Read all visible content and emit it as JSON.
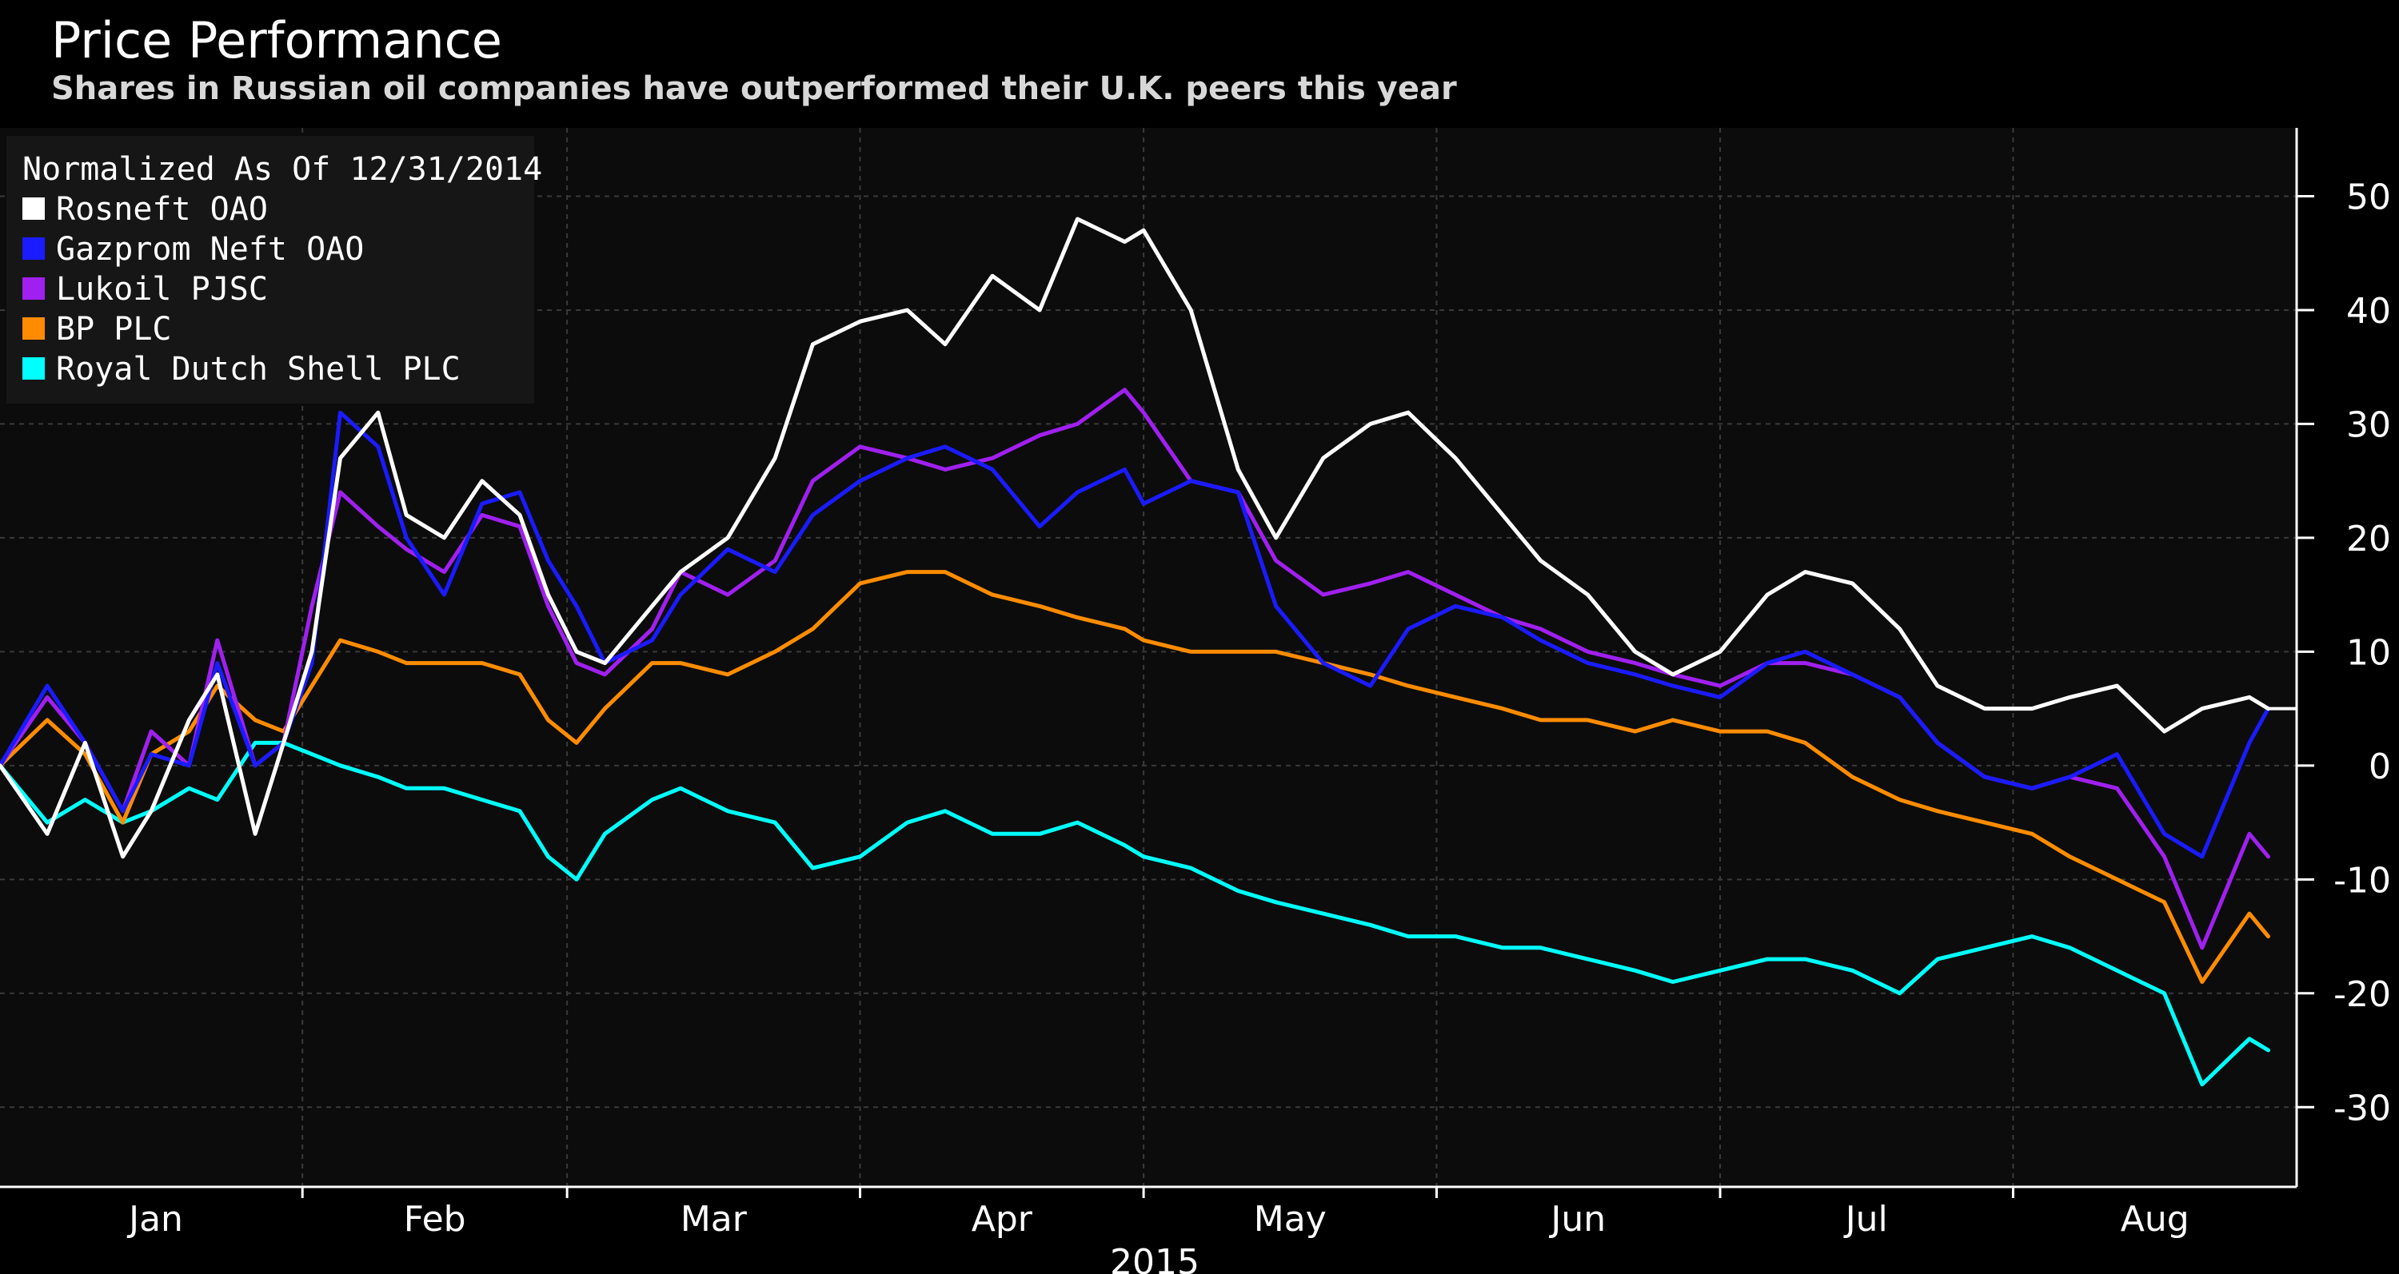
{
  "chart_data": {
    "type": "line",
    "title": "Price Performance",
    "subtitle": "Shares in Russian oil companies have outperformed their U.K. peers this year",
    "legend_title": "Normalized As Of 12/31/2014",
    "legend_position": "top-left",
    "xlabel": "2015",
    "ylabel": "",
    "x_tick_labels": [
      "Jan",
      "Feb",
      "Mar",
      "Apr",
      "May",
      "Jun",
      "Jul",
      "Aug"
    ],
    "y_ticks": [
      50,
      40,
      30,
      20,
      10,
      0,
      -10,
      -20,
      -30
    ],
    "y_tick_labels": [
      "50",
      "40",
      "30",
      "20",
      "10",
      "0",
      "-10",
      "-20",
      "-30"
    ],
    "ylim": [
      -37,
      56
    ],
    "xlim": [
      "2014-12-31",
      "2015-08-31"
    ],
    "grid": true,
    "x": [
      "2014-12-31",
      "2015-01-05",
      "2015-01-09",
      "2015-01-13",
      "2015-01-16",
      "2015-01-20",
      "2015-01-23",
      "2015-01-27",
      "2015-01-30",
      "2015-02-02",
      "2015-02-05",
      "2015-02-09",
      "2015-02-12",
      "2015-02-16",
      "2015-02-20",
      "2015-02-24",
      "2015-02-27",
      "2015-03-02",
      "2015-03-05",
      "2015-03-10",
      "2015-03-13",
      "2015-03-18",
      "2015-03-23",
      "2015-03-27",
      "2015-04-01",
      "2015-04-06",
      "2015-04-10",
      "2015-04-15",
      "2015-04-20",
      "2015-04-24",
      "2015-04-29",
      "2015-05-01",
      "2015-05-06",
      "2015-05-11",
      "2015-05-15",
      "2015-05-20",
      "2015-05-25",
      "2015-05-29",
      "2015-06-03",
      "2015-06-08",
      "2015-06-12",
      "2015-06-17",
      "2015-06-22",
      "2015-06-26",
      "2015-07-01",
      "2015-07-06",
      "2015-07-10",
      "2015-07-15",
      "2015-07-20",
      "2015-07-24",
      "2015-07-29",
      "2015-08-03",
      "2015-08-07",
      "2015-08-12",
      "2015-08-17",
      "2015-08-21",
      "2015-08-26",
      "2015-08-28"
    ],
    "series": [
      {
        "name": "Rosneft OAO",
        "color": "#ffffff",
        "values": [
          0,
          -6,
          2,
          -8,
          -4,
          4,
          8,
          -6,
          2,
          10,
          27,
          31,
          22,
          20,
          25,
          22,
          15,
          10,
          9,
          14,
          17,
          20,
          27,
          37,
          39,
          40,
          37,
          43,
          40,
          48,
          46,
          47,
          40,
          26,
          20,
          27,
          30,
          31,
          27,
          22,
          18,
          15,
          10,
          8,
          10,
          15,
          17,
          16,
          12,
          7,
          5,
          5,
          6,
          7,
          3,
          5,
          6,
          5
        ]
      },
      {
        "name": "Gazprom Neft OAO",
        "color": "#1b1bff",
        "values": [
          0,
          7,
          2,
          -4,
          1,
          0,
          9,
          0,
          2,
          9,
          31,
          28,
          20,
          15,
          23,
          24,
          18,
          14,
          9,
          11,
          15,
          19,
          17,
          22,
          25,
          27,
          28,
          26,
          21,
          24,
          26,
          23,
          25,
          24,
          14,
          9,
          7,
          12,
          14,
          13,
          11,
          9,
          8,
          7,
          6,
          9,
          10,
          8,
          6,
          2,
          -1,
          -2,
          -1,
          1,
          -6,
          -8,
          2,
          5
        ]
      },
      {
        "name": "Lukoil PJSC",
        "color": "#a020f0",
        "values": [
          0,
          6,
          2,
          -4,
          3,
          0,
          11,
          0,
          2,
          14,
          24,
          21,
          19,
          17,
          22,
          21,
          14,
          9,
          8,
          12,
          17,
          15,
          18,
          25,
          28,
          27,
          26,
          27,
          29,
          30,
          33,
          31,
          25,
          24,
          18,
          15,
          16,
          17,
          15,
          13,
          12,
          10,
          9,
          8,
          7,
          9,
          9,
          8,
          6,
          2,
          -1,
          -2,
          -1,
          -2,
          -8,
          -16,
          -6,
          -8
        ]
      },
      {
        "name": "BP PLC",
        "color": "#ff8c00",
        "values": [
          0,
          4,
          1,
          -5,
          1,
          3,
          7,
          4,
          3,
          7,
          11,
          10,
          9,
          9,
          9,
          8,
          4,
          2,
          5,
          9,
          9,
          8,
          10,
          12,
          16,
          17,
          17,
          15,
          14,
          13,
          12,
          11,
          10,
          10,
          10,
          9,
          8,
          7,
          6,
          5,
          4,
          4,
          3,
          4,
          3,
          3,
          2,
          -1,
          -3,
          -4,
          -5,
          -6,
          -8,
          -10,
          -12,
          -19,
          -13,
          -15
        ]
      },
      {
        "name": "Royal Dutch Shell PLC",
        "color": "#00ffff",
        "values": [
          0,
          -5,
          -3,
          -5,
          -4,
          -2,
          -3,
          2,
          2,
          1,
          0,
          -1,
          -2,
          -2,
          -3,
          -4,
          -8,
          -10,
          -6,
          -3,
          -2,
          -4,
          -5,
          -9,
          -8,
          -5,
          -4,
          -6,
          -6,
          -5,
          -7,
          -8,
          -9,
          -11,
          -12,
          -13,
          -14,
          -15,
          -15,
          -16,
          -16,
          -17,
          -18,
          -19,
          -18,
          -17,
          -17,
          -18,
          -20,
          -17,
          -16,
          -15,
          -16,
          -18,
          -20,
          -28,
          -24,
          -25
        ]
      }
    ]
  }
}
